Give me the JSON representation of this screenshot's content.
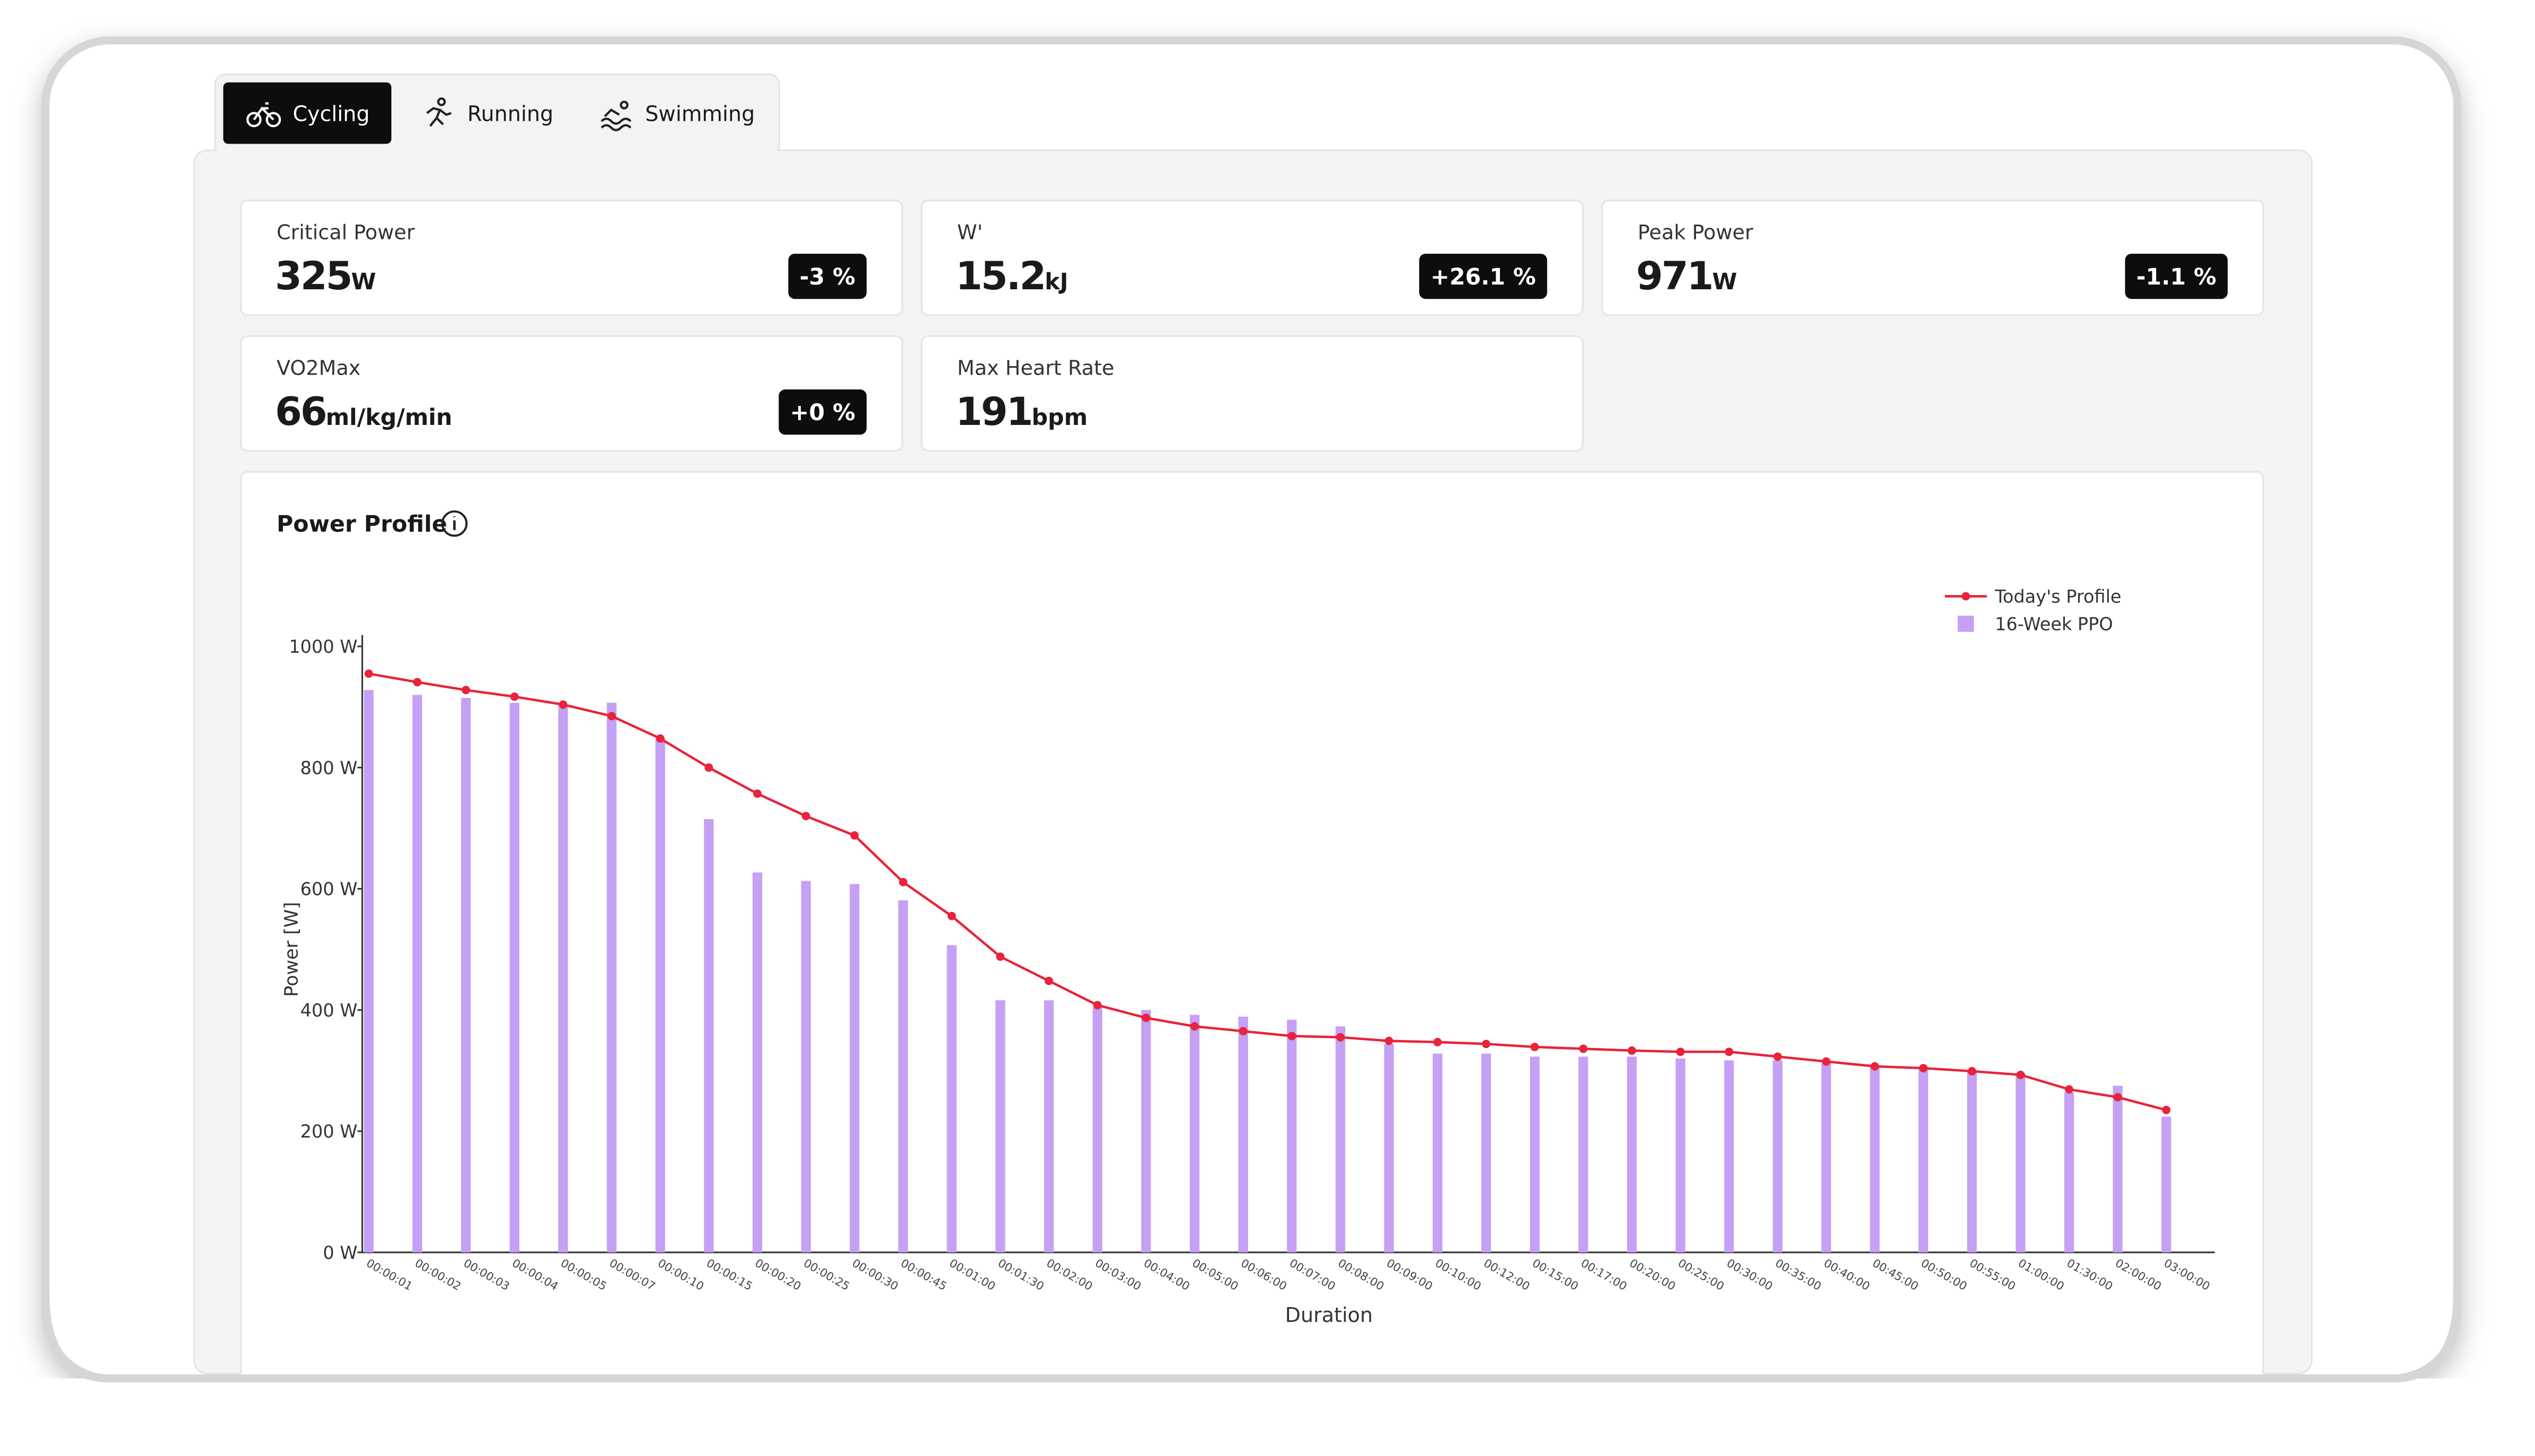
{
  "tabs": [
    "Cycling",
    "Running",
    "Swimming"
  ],
  "metrics": [
    {
      "label": "Critical Power",
      "value": 325,
      "unit": "W",
      "change": "-3 %"
    },
    {
      "label": "W'",
      "value": 15.2,
      "unit": "kJ",
      "change": "+26.1 %"
    },
    {
      "label": "Peak Power",
      "value": 971,
      "unit": "W",
      "change": "-1.1 %"
    },
    {
      "label": "VO2Max",
      "value": 66,
      "unit": "ml/kg/min",
      "change": "+0 %"
    },
    {
      "label": "Max Heart Rate",
      "value": 191,
      "unit": "bpm"
    }
  ],
  "chart_data": {
    "type": "bar_line",
    "title": "Power Profile",
    "xlabel": "Duration",
    "ylabel": "Power [W]",
    "categories": [
      "00:00:01",
      "00:00:02",
      "00:00:03",
      "00:00:04",
      "00:00:05",
      "00:00:07",
      "00:00:10",
      "00:00:15",
      "00:00:20",
      "00:00:25",
      "00:00:30",
      "00:00:45",
      "00:01:00",
      "00:01:30",
      "00:02:00",
      "00:03:00",
      "00:04:00",
      "00:05:00",
      "00:06:00",
      "00:07:00",
      "00:08:00",
      "00:09:00",
      "00:10:00",
      "00:12:00",
      "00:15:00",
      "00:17:00",
      "00:20:00",
      "00:25:00",
      "00:30:00",
      "00:35:00",
      "00:40:00",
      "00:45:00",
      "00:50:00",
      "00:55:00",
      "01:00:00",
      "01:30:00",
      "02:00:00",
      "03:00:00"
    ],
    "series": [
      {
        "name": "Today's Profile",
        "type": "line",
        "color": "#e8233a",
        "values": [
          955,
          941,
          928,
          917,
          904,
          885,
          848,
          800,
          757,
          720,
          688,
          611,
          555,
          488,
          448,
          408,
          387,
          373,
          365,
          357,
          355,
          349,
          347,
          344,
          339,
          336,
          333,
          331,
          331,
          323,
          315,
          307,
          304,
          299,
          293,
          269,
          256,
          235
        ]
      },
      {
        "name": "16-Week PPO",
        "type": "bar",
        "color": "#c5a0f4",
        "values": [
          928,
          920,
          915,
          907,
          904,
          907,
          848,
          715,
          627,
          613,
          608,
          581,
          507,
          416,
          416,
          405,
          400,
          392,
          389,
          384,
          373,
          344,
          328,
          328,
          323,
          323,
          323,
          320,
          317,
          317,
          312,
          309,
          307,
          301,
          296,
          264,
          275,
          224
        ]
      }
    ],
    "ylim": [
      0,
      1000
    ],
    "yticks": [
      {
        "value": 0,
        "label": "0 W"
      },
      {
        "value": 200,
        "label": "200 W"
      },
      {
        "value": 400,
        "label": "400 W"
      },
      {
        "value": 600,
        "label": "600 W"
      },
      {
        "value": 800,
        "label": "800 W"
      },
      {
        "value": 1000,
        "label": "1000 W"
      }
    ],
    "legend": "top-right",
    "grid": false
  }
}
